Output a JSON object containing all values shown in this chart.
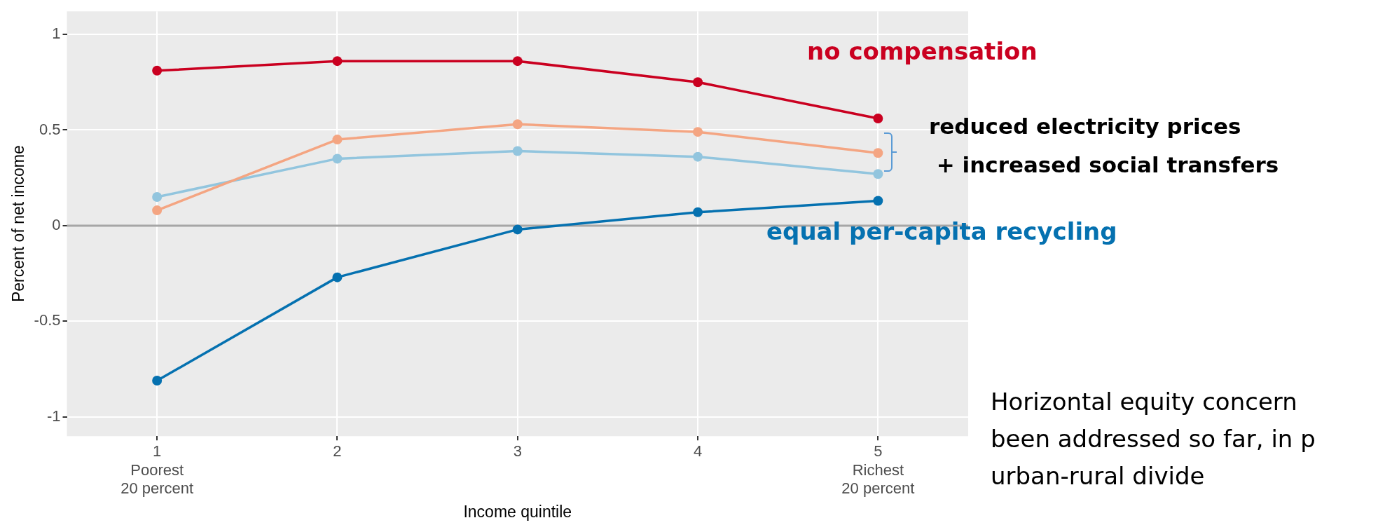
{
  "chart_data": {
    "type": "line",
    "xlabel": "Income quintile",
    "ylabel": "Percent of net income",
    "categories": [
      "1\nPoorest\n20 percent",
      "2",
      "3",
      "4",
      "5\nRichest\n20 percent"
    ],
    "series": [
      {
        "name": "no compensation",
        "color": "#ca0020",
        "values": [
          0.81,
          0.86,
          0.86,
          0.75,
          0.56
        ]
      },
      {
        "color": "#f4a582",
        "values": [
          0.08,
          0.45,
          0.53,
          0.49,
          0.38
        ]
      },
      {
        "color": "#92c5de",
        "values": [
          0.15,
          0.35,
          0.39,
          0.36,
          0.27
        ]
      },
      {
        "name": "equal per-capita recycling",
        "color": "#0571b0",
        "values": [
          -0.81,
          -0.27,
          -0.02,
          0.07,
          0.13
        ]
      }
    ],
    "ylim": [
      -1.1,
      1.12
    ],
    "yticks": [
      -1,
      -0.5,
      0,
      0.5,
      1
    ],
    "grid": true,
    "legend": false,
    "marker": "circle",
    "line_style": "solid",
    "ref_lines": [
      {
        "axis": "y",
        "value": 0,
        "color": "#a6a6a6"
      }
    ],
    "annotations": [
      "reduced electricity prices\n + increased social transfers",
      "Horizontal equity concern\nbeen addressed so far, in p\nurban-rural divide"
    ]
  }
}
